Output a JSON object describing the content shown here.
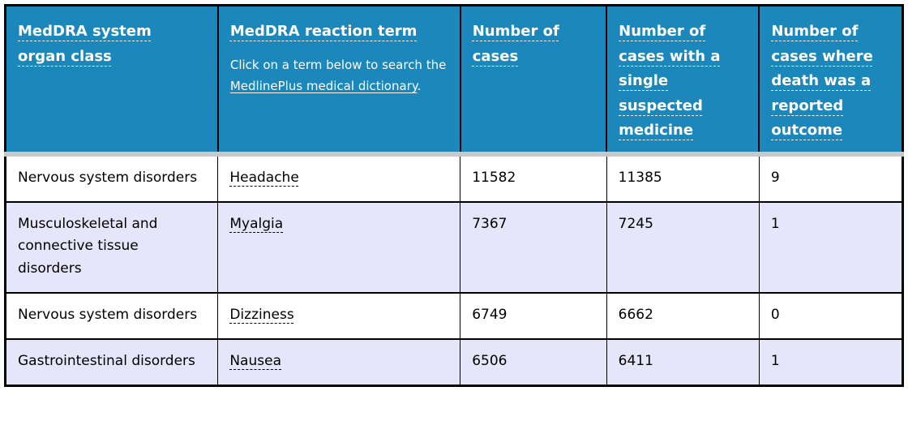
{
  "table": {
    "columns": [
      {
        "label": "MedDRA system organ class"
      },
      {
        "label": "MedDRA reaction term"
      },
      {
        "label": "Number of cases"
      },
      {
        "label": "Number of cases with a single suspected medicine"
      },
      {
        "label": "Number of cases where death was a reported outcome"
      }
    ],
    "reaction_term_note": {
      "prefix": "Click on a term below to search the ",
      "link_label": "MedlinePlus medical dictionary",
      "suffix": "."
    },
    "rows": [
      {
        "organ_class": "Nervous system disorders",
        "reaction_term": "Headache",
        "cases": "11582",
        "single_suspected": "11385",
        "deaths": "9"
      },
      {
        "organ_class": "Musculoskeletal and connective tissue disorders",
        "reaction_term": "Myalgia",
        "cases": "7367",
        "single_suspected": "7245",
        "deaths": "1"
      },
      {
        "organ_class": "Nervous system disorders",
        "reaction_term": "Dizziness",
        "cases": "6749",
        "single_suspected": "6662",
        "deaths": "0"
      },
      {
        "organ_class": "Gastrointestinal disorders",
        "reaction_term": "Nausea",
        "cases": "6506",
        "single_suspected": "6411",
        "deaths": "1"
      }
    ]
  },
  "colors": {
    "header_background": "#1b87ba",
    "header_text": "#ffffff",
    "alt_row_background": "#e6e6fa",
    "row_background": "#ffffff",
    "cell_border": "#000000",
    "header_bottom_border": "#c8c8c8",
    "body_text": "#000000"
  }
}
